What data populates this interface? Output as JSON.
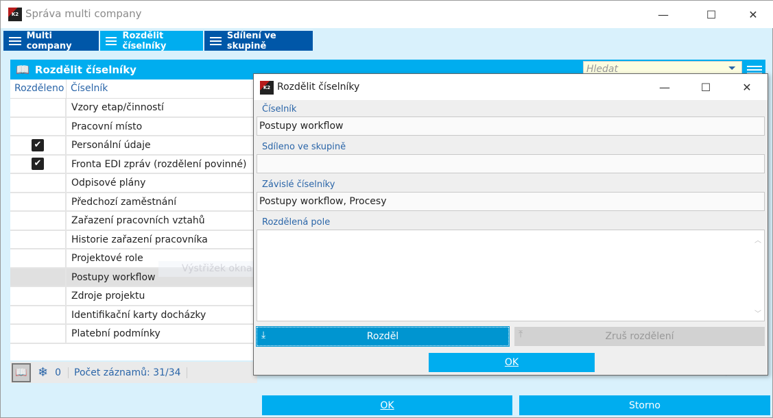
{
  "window": {
    "title": "Správa multi company",
    "minimize": "—",
    "maximize": "☐",
    "close": "✕"
  },
  "tabs": [
    {
      "label": "Multi company"
    },
    {
      "label": "Rozdělit číselníky"
    },
    {
      "label": "Sdílení ve skupině"
    }
  ],
  "panel": {
    "title": "Rozdělit číselníky",
    "search_placeholder": "Hledat"
  },
  "grid": {
    "columns": [
      "Rozděleno",
      "Číselník"
    ],
    "rows": [
      {
        "checked": false,
        "name": "Vzory etap/činností"
      },
      {
        "checked": false,
        "name": "Pracovní místo"
      },
      {
        "checked": true,
        "name": "Personální údaje"
      },
      {
        "checked": true,
        "name": "Fronta EDI zpráv (rozdělení povinné)"
      },
      {
        "checked": false,
        "name": "Odpisové plány"
      },
      {
        "checked": false,
        "name": "Předchozí zaměstnání"
      },
      {
        "checked": false,
        "name": "Zařazení pracovních vztahů"
      },
      {
        "checked": false,
        "name": "Historie zařazení pracovníka"
      },
      {
        "checked": false,
        "name": "Projektové role"
      },
      {
        "checked": false,
        "name": "Postupy workflow",
        "selected": true
      },
      {
        "checked": false,
        "name": "Zdroje projektu"
      },
      {
        "checked": false,
        "name": "Identifikační karty docházky"
      },
      {
        "checked": false,
        "name": "Platební podmínky"
      }
    ],
    "check_glyph": "✔"
  },
  "status": {
    "filter_count": "0",
    "records": "Počet záznamů: 31/34"
  },
  "ghost_text": "Výstřižek okna",
  "footer": {
    "ok": "OK",
    "cancel": "Storno"
  },
  "dialog": {
    "title": "Rozdělit číselníky",
    "minimize": "—",
    "maximize": "☐",
    "close": "✕",
    "fields": [
      {
        "label": "Číselník",
        "value": "Postupy workflow"
      },
      {
        "label": "Sdíleno ve skupině",
        "value": ""
      },
      {
        "label": "Závislé číselníky",
        "value": "Postupy workflow, Procesy"
      }
    ],
    "split_fields_label": "Rozdělená pole",
    "split_button": "Rozděl",
    "unsplit_button": "Zruš rozdělení",
    "ok": "OK"
  },
  "colors": {
    "accent": "#00adef",
    "dark_tab": "#0057a8",
    "label": "#2a65a8"
  }
}
